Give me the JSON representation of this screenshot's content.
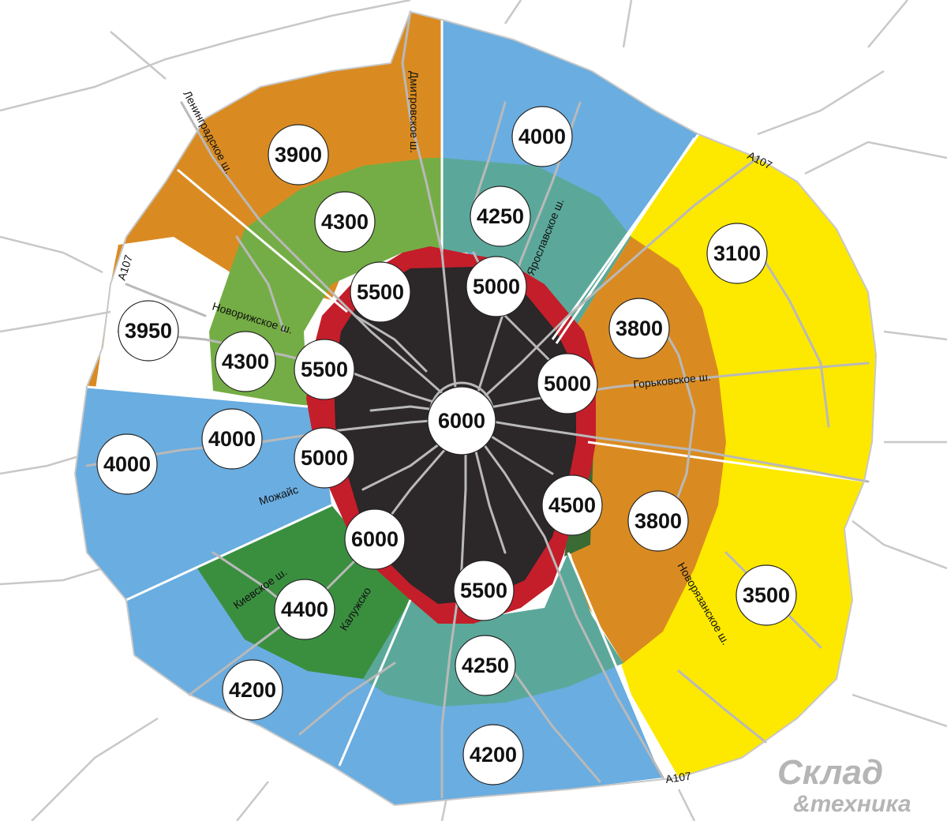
{
  "colors": {
    "center": "#2c2728",
    "ring": "#c41e2a",
    "orange": "#d98b22",
    "light_green": "#74ad45",
    "dark_green": "#3a8f3f",
    "teal": "#5ba89a",
    "blue": "#6aade0",
    "yellow": "#fde800",
    "road": "#b9b9b9"
  },
  "prices": {
    "center": "6000",
    "ring_nw": "5500",
    "ring_n": "5000",
    "ring_w": "5500",
    "ring_e": "5000",
    "ring_sw_w": "5000",
    "ring_se": "4500",
    "ring_sw": "6000",
    "ring_s": "5500",
    "mid_nw": "4300",
    "mid_w": "4300",
    "mid_n": "4250",
    "mid_e": "3800",
    "mid_se": "3800",
    "mid_sw": "4400",
    "mid_s": "4250",
    "mid_wsw": "4000",
    "outer_nw": "3900",
    "outer_w": "3950",
    "outer_n": "4000",
    "outer_e": "3100",
    "outer_se": "3500",
    "outer_sw_w": "4000",
    "outer_sw": "4200",
    "outer_s": "4200"
  },
  "road_labels": {
    "leningradskoe": "Ленинградское ш.",
    "dmitrovskoe": "Дмитровское ш.",
    "yaroslavskoe": "Ярославское ш.",
    "a107_ne": "A107",
    "a107_w": "A107",
    "a107_s": "A107",
    "novorizhskoe": "Новорижское ш.",
    "gorkovskoe": "Горьковское ш.",
    "mozhayskoe": "Можайс",
    "kievskoe": "Киевское ш.",
    "kaluzhskoe": "Калужско",
    "novoryazanskoe": "Новорязанское ш."
  },
  "logo": {
    "line1": "Склад",
    "line2": "&техника"
  }
}
